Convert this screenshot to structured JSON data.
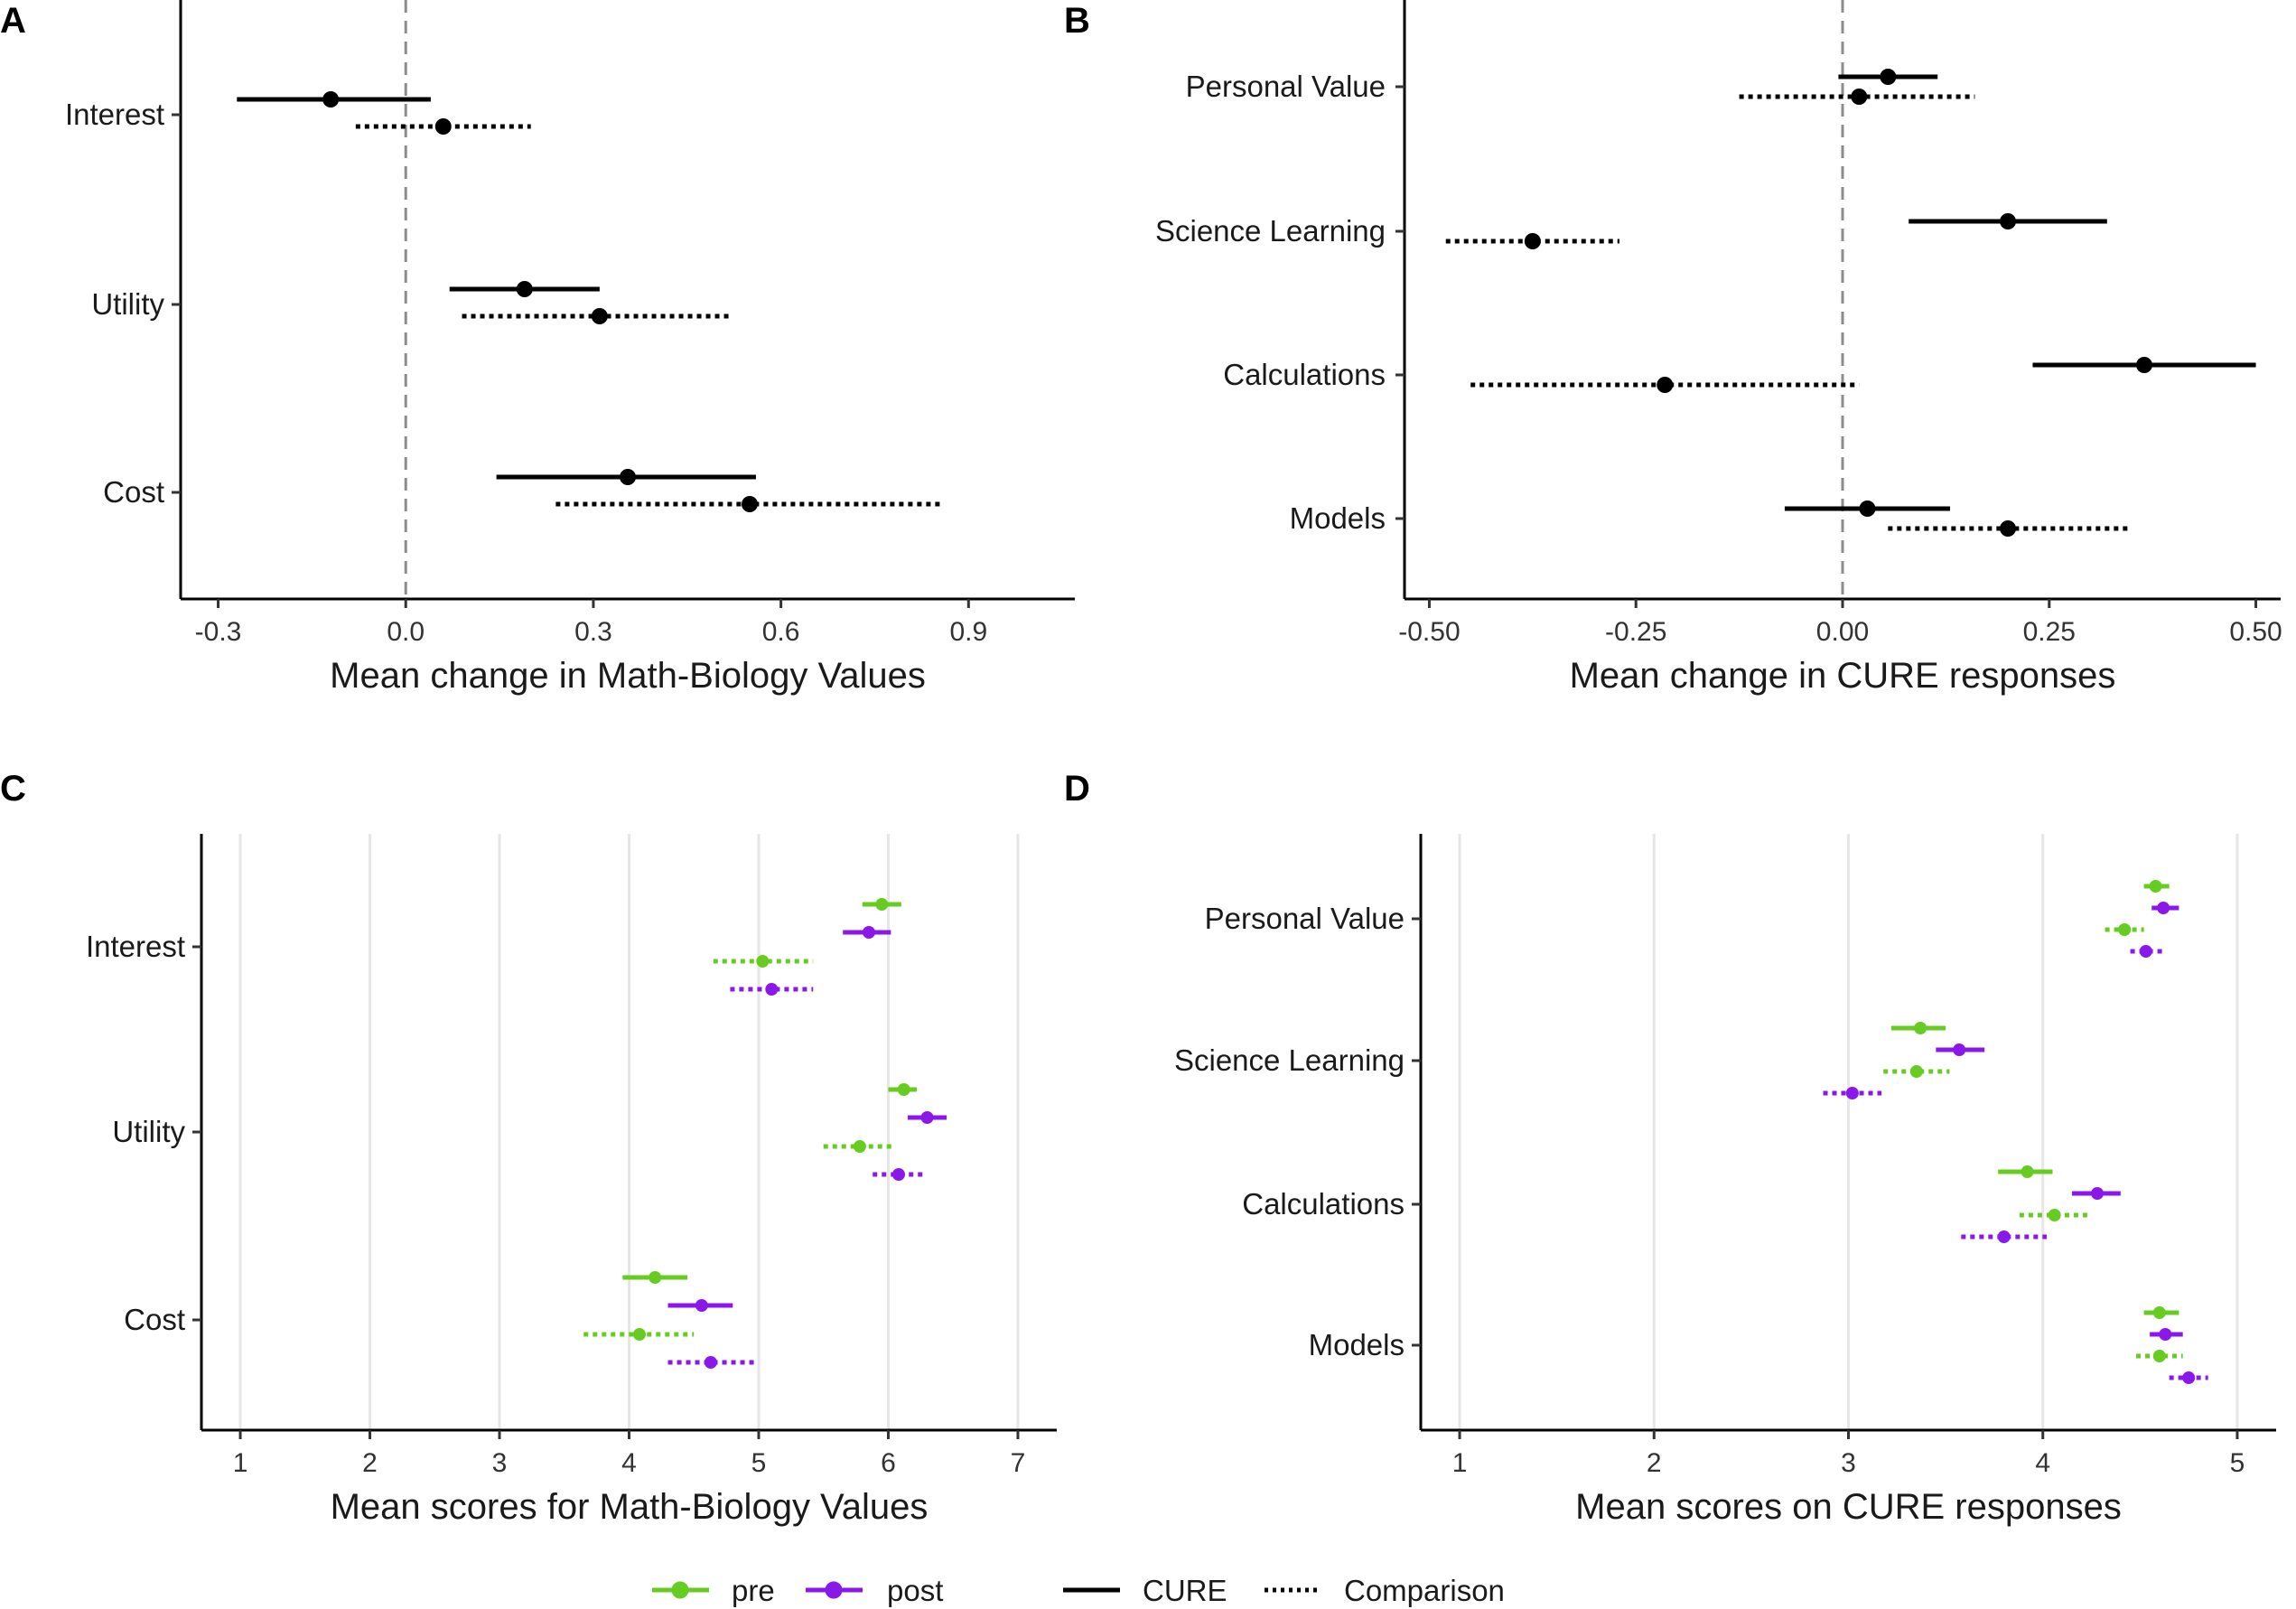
{
  "figure": {
    "colors": {
      "pre": "#66cc22",
      "post": "#8a18e8",
      "estimate": "#000000",
      "zero_line": "#8c8c8c",
      "grid": "#e6e6e6"
    },
    "legend": {
      "pre": "pre",
      "post": "post",
      "cure": "CURE",
      "comparison": "Comparison"
    }
  },
  "chart_data": [
    {
      "panel": "A",
      "type": "scatter",
      "style": "point-range (mean change with interval)",
      "xlabel": "Mean change in Math-Biology Values",
      "xlim": [
        -0.36,
        1.07
      ],
      "xticks": [
        -0.3,
        0.0,
        0.3,
        0.6,
        0.9
      ],
      "xtick_labels": [
        "-0.3",
        "0.0",
        "0.3",
        "0.6",
        "0.9"
      ],
      "zero_line": 0,
      "categories": [
        "Interest",
        "Utility",
        "Cost"
      ],
      "series": [
        {
          "name": "CURE",
          "linestyle": "solid",
          "values": [
            -0.12,
            0.19,
            0.355
          ],
          "lower": [
            -0.27,
            0.07,
            0.145
          ],
          "upper": [
            0.04,
            0.31,
            0.56
          ]
        },
        {
          "name": "Comparison",
          "linestyle": "dotted",
          "values": [
            0.06,
            0.31,
            0.55
          ],
          "lower": [
            -0.08,
            0.09,
            0.24
          ],
          "upper": [
            0.2,
            0.52,
            0.86
          ]
        }
      ]
    },
    {
      "panel": "B",
      "type": "scatter",
      "style": "point-range (mean change with interval)",
      "xlabel": "Mean change in CURE responses",
      "xlim": [
        -0.53,
        0.53
      ],
      "xticks": [
        -0.5,
        -0.25,
        0.0,
        0.25,
        0.5
      ],
      "xtick_labels": [
        "-0.50",
        "-0.25",
        "0.00",
        "0.25",
        "0.50"
      ],
      "zero_line": 0,
      "categories": [
        "Personal Value",
        "Science Learning",
        "Calculations",
        "Models"
      ],
      "series": [
        {
          "name": "CURE",
          "linestyle": "solid",
          "values": [
            0.055,
            0.2,
            0.365,
            0.03
          ],
          "lower": [
            -0.005,
            0.08,
            0.23,
            -0.07
          ],
          "upper": [
            0.115,
            0.32,
            0.5,
            0.13
          ]
        },
        {
          "name": "Comparison",
          "linestyle": "dotted",
          "values": [
            0.02,
            -0.375,
            -0.215,
            0.2
          ],
          "lower": [
            -0.125,
            -0.48,
            -0.45,
            0.055
          ],
          "upper": [
            0.16,
            -0.27,
            0.02,
            0.345
          ]
        }
      ]
    },
    {
      "panel": "C",
      "type": "scatter",
      "style": "point-range (mean score with interval)",
      "xlabel": "Mean scores for Math-Biology Values",
      "xlim": [
        0.7,
        7.3
      ],
      "xticks": [
        1,
        2,
        3,
        4,
        5,
        6,
        7
      ],
      "xtick_labels": [
        "1",
        "2",
        "3",
        "4",
        "5",
        "6",
        "7"
      ],
      "categories": [
        "Interest",
        "Utility",
        "Cost"
      ],
      "series": [
        {
          "name": "CURE pre",
          "group": "pre",
          "linestyle": "solid",
          "values": [
            5.95,
            6.12,
            4.2
          ],
          "lower": [
            5.8,
            6.0,
            3.95
          ],
          "upper": [
            6.1,
            6.22,
            4.45
          ]
        },
        {
          "name": "CURE post",
          "group": "post",
          "linestyle": "solid",
          "values": [
            5.85,
            6.3,
            4.56
          ],
          "lower": [
            5.65,
            6.15,
            4.3
          ],
          "upper": [
            6.02,
            6.45,
            4.8
          ]
        },
        {
          "name": "Comparison pre",
          "group": "pre",
          "linestyle": "dotted",
          "values": [
            5.03,
            5.78,
            4.08
          ],
          "lower": [
            4.65,
            5.5,
            3.65
          ],
          "upper": [
            5.42,
            6.05,
            4.5
          ]
        },
        {
          "name": "Comparison post",
          "group": "post",
          "linestyle": "dotted",
          "values": [
            5.1,
            6.08,
            4.63
          ],
          "lower": [
            4.78,
            5.88,
            4.3
          ],
          "upper": [
            5.42,
            6.28,
            4.97
          ]
        }
      ]
    },
    {
      "panel": "D",
      "type": "scatter",
      "style": "point-range (mean score with interval)",
      "xlabel": "Mean scores on CURE responses",
      "xlim": [
        0.8,
        5.2
      ],
      "xticks": [
        1,
        2,
        3,
        4,
        5
      ],
      "xtick_labels": [
        "1",
        "2",
        "3",
        "4",
        "5"
      ],
      "categories": [
        "Personal Value",
        "Science Learning",
        "Calculations",
        "Models"
      ],
      "series": [
        {
          "name": "CURE pre",
          "group": "pre",
          "linestyle": "solid",
          "values": [
            4.58,
            3.37,
            3.92,
            4.6
          ],
          "lower": [
            4.52,
            3.22,
            3.77,
            4.52
          ],
          "upper": [
            4.65,
            3.5,
            4.05,
            4.7
          ]
        },
        {
          "name": "CURE post",
          "group": "post",
          "linestyle": "solid",
          "values": [
            4.62,
            3.57,
            4.28,
            4.63
          ],
          "lower": [
            4.56,
            3.45,
            4.15,
            4.55
          ],
          "upper": [
            4.7,
            3.7,
            4.4,
            4.72
          ]
        },
        {
          "name": "Comparison pre",
          "group": "pre",
          "linestyle": "dotted",
          "values": [
            4.42,
            3.35,
            4.06,
            4.6
          ],
          "lower": [
            4.32,
            3.18,
            3.88,
            4.48
          ],
          "upper": [
            4.52,
            3.52,
            4.24,
            4.72
          ]
        },
        {
          "name": "Comparison post",
          "group": "post",
          "linestyle": "dotted",
          "values": [
            4.53,
            3.02,
            3.8,
            4.75
          ],
          "lower": [
            4.45,
            2.87,
            3.58,
            4.65
          ],
          "upper": [
            4.62,
            3.17,
            4.02,
            4.85
          ]
        }
      ]
    }
  ]
}
